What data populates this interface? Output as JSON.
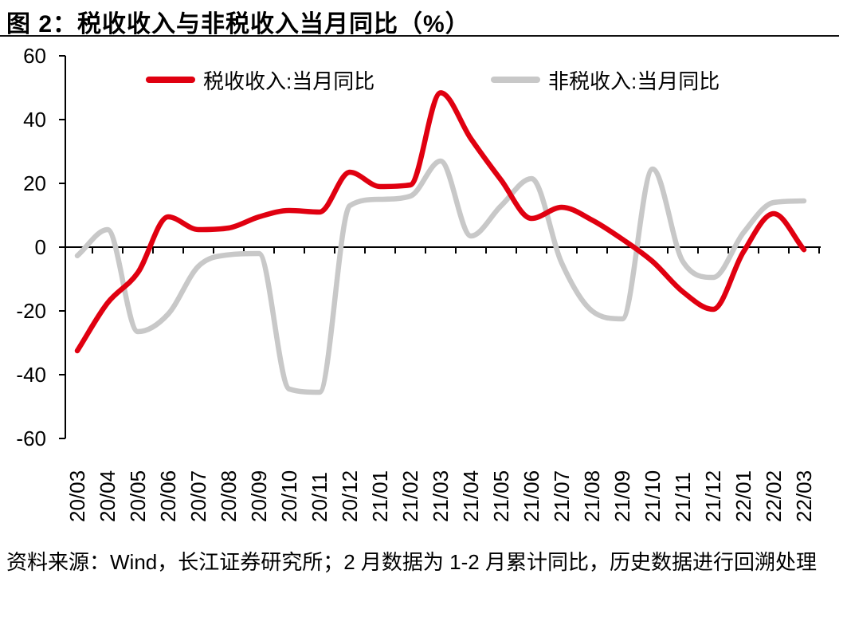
{
  "page": {
    "title": "图 2：税收收入与非税收入当月同比（%）",
    "footer_note": "资料来源：Wind，长江证券研究所；2 月数据为 1-2 月累计同比，历史数据进行回溯处理"
  },
  "chart_data": {
    "type": "line",
    "title": "图 2：税收收入与非税收入当月同比（%）",
    "categories": [
      "20/03",
      "20/04",
      "20/05",
      "20/06",
      "20/07",
      "20/08",
      "20/09",
      "20/10",
      "20/11",
      "20/12",
      "21/01",
      "21/02",
      "21/03",
      "21/04",
      "21/05",
      "21/06",
      "21/07",
      "21/08",
      "21/09",
      "21/10",
      "21/11",
      "21/12",
      "22/01",
      "22/02",
      "22/03"
    ],
    "series": [
      {
        "name": "税收收入:当月同比",
        "color": "#E00010",
        "values": [
          -32.5,
          -17.5,
          -8,
          9.5,
          5.5,
          6,
          9.5,
          11.5,
          11,
          23.5,
          19,
          19.5,
          48.4,
          34,
          21,
          9,
          12.5,
          8.5,
          2.5,
          -4.5,
          -14,
          -19.5,
          -1.5,
          10.5,
          -0.8
        ]
      },
      {
        "name": "非税收入:当月同比",
        "color": "#C8C8C8",
        "values": [
          -2.7,
          5.5,
          -26.5,
          -21,
          -6,
          -2.4,
          -2,
          -44.5,
          -45.5,
          13,
          15,
          16,
          27,
          3.5,
          13,
          21.5,
          -5,
          -20,
          -22.5,
          24.5,
          -4.5,
          -9.5,
          4.5,
          14,
          14.5
        ]
      }
    ],
    "xlabel": "",
    "ylabel": "",
    "ylim": [
      -60,
      60
    ],
    "ytick_step": 20,
    "yticks": [
      60,
      40,
      20,
      0,
      -20,
      -40,
      -60
    ],
    "x_label_rotation": -90,
    "grid": false,
    "legend_position": "top",
    "axis_color": "#000000",
    "source_note": "资料来源：Wind，长江证券研究所；2 月数据为 1-2 月累计同比，历史数据进行回溯处理"
  }
}
